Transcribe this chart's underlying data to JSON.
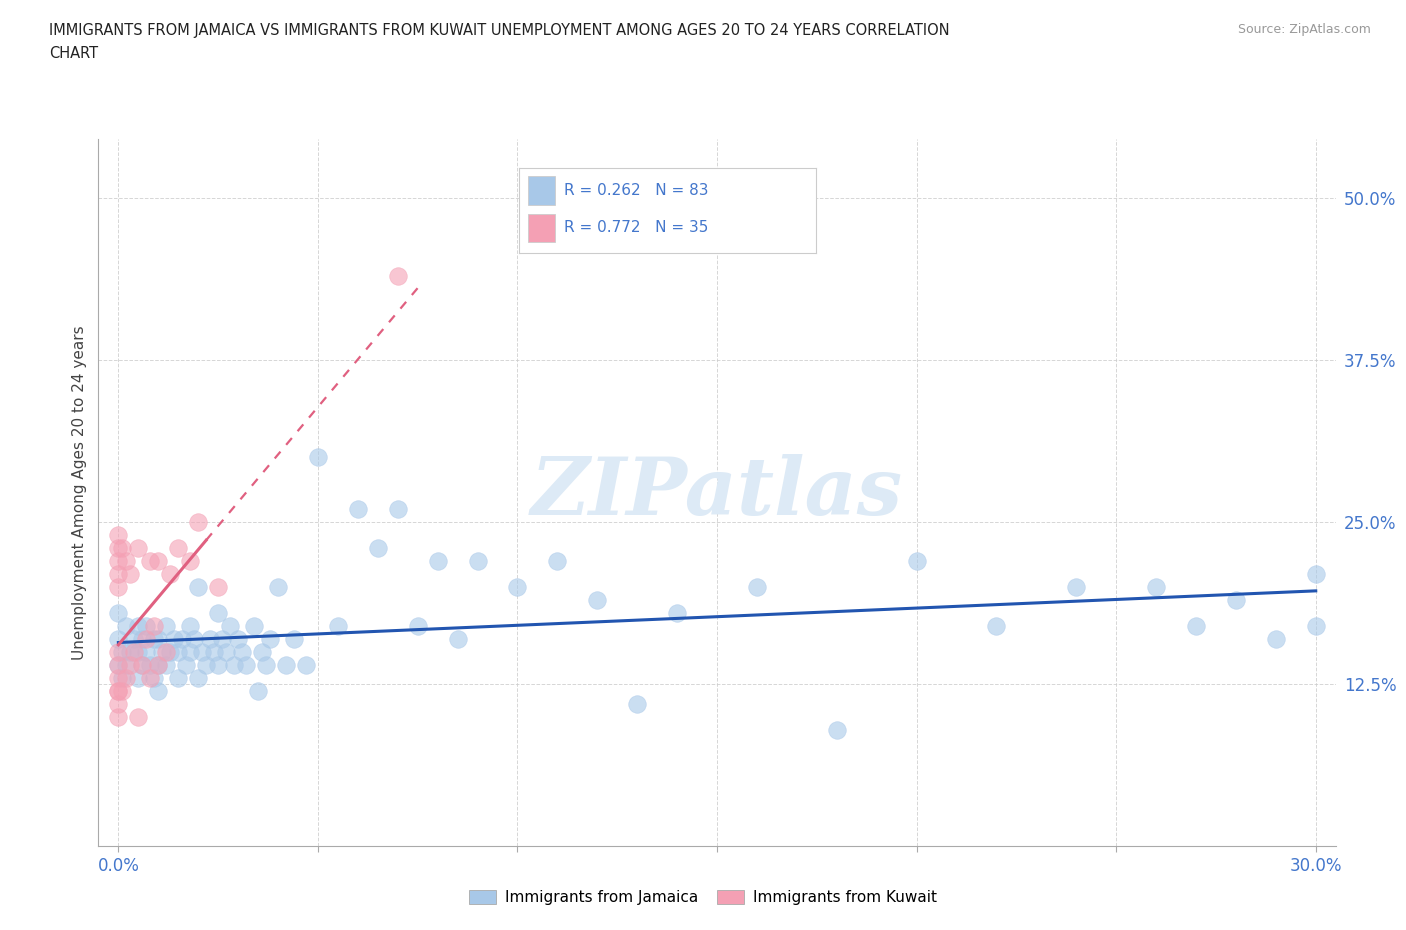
{
  "title_line1": "IMMIGRANTS FROM JAMAICA VS IMMIGRANTS FROM KUWAIT UNEMPLOYMENT AMONG AGES 20 TO 24 YEARS CORRELATION",
  "title_line2": "CHART",
  "source": "Source: ZipAtlas.com",
  "ylabel": "Unemployment Among Ages 20 to 24 years",
  "ytick_labels": [
    "12.5%",
    "25.0%",
    "37.5%",
    "50.0%"
  ],
  "ytick_values": [
    0.125,
    0.25,
    0.375,
    0.5
  ],
  "xtick_values": [
    0.0,
    0.05,
    0.1,
    0.15,
    0.2,
    0.25,
    0.3
  ],
  "xlim": [
    -0.005,
    0.305
  ],
  "ylim": [
    0.0,
    0.545
  ],
  "jamaica_color": "#a8c8e8",
  "kuwait_color": "#f4a0b4",
  "jamaica_line_color": "#2255b0",
  "kuwait_line_color": "#e06080",
  "legend_jamaica": "Immigrants from Jamaica",
  "legend_kuwait": "Immigrants from Kuwait",
  "r_jamaica": "R = 0.262",
  "n_jamaica": "N = 83",
  "r_kuwait": "R = 0.772",
  "n_kuwait": "N = 35",
  "jamaica_x": [
    0.0,
    0.0,
    0.0,
    0.001,
    0.001,
    0.002,
    0.002,
    0.003,
    0.004,
    0.005,
    0.005,
    0.005,
    0.006,
    0.006,
    0.007,
    0.007,
    0.008,
    0.009,
    0.009,
    0.01,
    0.01,
    0.01,
    0.011,
    0.012,
    0.012,
    0.013,
    0.014,
    0.015,
    0.015,
    0.016,
    0.017,
    0.018,
    0.018,
    0.019,
    0.02,
    0.02,
    0.021,
    0.022,
    0.023,
    0.024,
    0.025,
    0.025,
    0.026,
    0.027,
    0.028,
    0.029,
    0.03,
    0.031,
    0.032,
    0.034,
    0.035,
    0.036,
    0.037,
    0.038,
    0.04,
    0.042,
    0.044,
    0.047,
    0.05,
    0.055,
    0.06,
    0.065,
    0.07,
    0.075,
    0.08,
    0.085,
    0.09,
    0.1,
    0.11,
    0.12,
    0.13,
    0.14,
    0.16,
    0.18,
    0.2,
    0.22,
    0.24,
    0.26,
    0.27,
    0.28,
    0.29,
    0.3,
    0.3
  ],
  "jamaica_y": [
    0.14,
    0.16,
    0.18,
    0.13,
    0.15,
    0.14,
    0.17,
    0.15,
    0.16,
    0.13,
    0.15,
    0.17,
    0.14,
    0.16,
    0.15,
    0.17,
    0.14,
    0.13,
    0.16,
    0.12,
    0.14,
    0.16,
    0.15,
    0.14,
    0.17,
    0.15,
    0.16,
    0.13,
    0.15,
    0.16,
    0.14,
    0.15,
    0.17,
    0.16,
    0.13,
    0.2,
    0.15,
    0.14,
    0.16,
    0.15,
    0.14,
    0.18,
    0.16,
    0.15,
    0.17,
    0.14,
    0.16,
    0.15,
    0.14,
    0.17,
    0.12,
    0.15,
    0.14,
    0.16,
    0.2,
    0.14,
    0.16,
    0.14,
    0.3,
    0.17,
    0.26,
    0.23,
    0.26,
    0.17,
    0.22,
    0.16,
    0.22,
    0.2,
    0.22,
    0.19,
    0.11,
    0.18,
    0.2,
    0.09,
    0.22,
    0.17,
    0.2,
    0.2,
    0.17,
    0.19,
    0.16,
    0.17,
    0.21
  ],
  "kuwait_x": [
    0.0,
    0.0,
    0.0,
    0.0,
    0.0,
    0.0,
    0.0,
    0.0,
    0.0,
    0.0,
    0.0,
    0.0,
    0.001,
    0.001,
    0.002,
    0.002,
    0.003,
    0.003,
    0.004,
    0.005,
    0.005,
    0.006,
    0.007,
    0.008,
    0.008,
    0.009,
    0.01,
    0.01,
    0.012,
    0.013,
    0.015,
    0.018,
    0.02,
    0.025,
    0.07
  ],
  "kuwait_y": [
    0.1,
    0.11,
    0.12,
    0.12,
    0.13,
    0.14,
    0.15,
    0.2,
    0.21,
    0.22,
    0.23,
    0.24,
    0.12,
    0.23,
    0.13,
    0.22,
    0.14,
    0.21,
    0.15,
    0.1,
    0.23,
    0.14,
    0.16,
    0.13,
    0.22,
    0.17,
    0.14,
    0.22,
    0.15,
    0.21,
    0.23,
    0.22,
    0.25,
    0.2,
    0.44
  ],
  "watermark": "ZIPatlas",
  "background_color": "#ffffff",
  "grid_color": "#cccccc",
  "title_color": "#222222",
  "axis_tick_color": "#4477cc",
  "label_color": "#444444"
}
